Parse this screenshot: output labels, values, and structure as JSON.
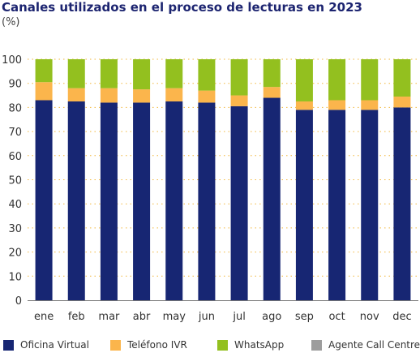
{
  "chart_data": {
    "type": "bar",
    "stacked": true,
    "title": "Canales utilizados en el proceso de lecturas en 2023",
    "unit": "(%)",
    "categories": [
      "ene",
      "feb",
      "mar",
      "abr",
      "may",
      "jun",
      "jul",
      "ago",
      "sep",
      "oct",
      "nov",
      "dec"
    ],
    "ylim": [
      0,
      100
    ],
    "yticks": [
      0,
      10,
      20,
      30,
      40,
      50,
      60,
      70,
      80,
      90,
      100
    ],
    "grid": true,
    "legend_position": "bottom",
    "series": [
      {
        "name": "Oficina Virtual",
        "color": "#172673",
        "values": [
          83,
          82.5,
          82,
          82,
          82.5,
          82,
          80.5,
          84,
          79,
          79,
          79,
          80
        ]
      },
      {
        "name": "Teléfono IVR",
        "color": "#fbb54c",
        "values": [
          7.5,
          5.5,
          6,
          5.5,
          5.5,
          5,
          4.5,
          4.5,
          3.5,
          4,
          4,
          4.5
        ]
      },
      {
        "name": "WhatsApp",
        "color": "#93c01f",
        "values": [
          9.5,
          12,
          12,
          12.5,
          12,
          13,
          15,
          11.5,
          17.5,
          17,
          17,
          15.5
        ]
      },
      {
        "name": "Agente Call Centre",
        "color": "#9d9d9d",
        "values": [
          0,
          0,
          0,
          0,
          0,
          0,
          0,
          0,
          0,
          0,
          0,
          0
        ]
      }
    ]
  }
}
